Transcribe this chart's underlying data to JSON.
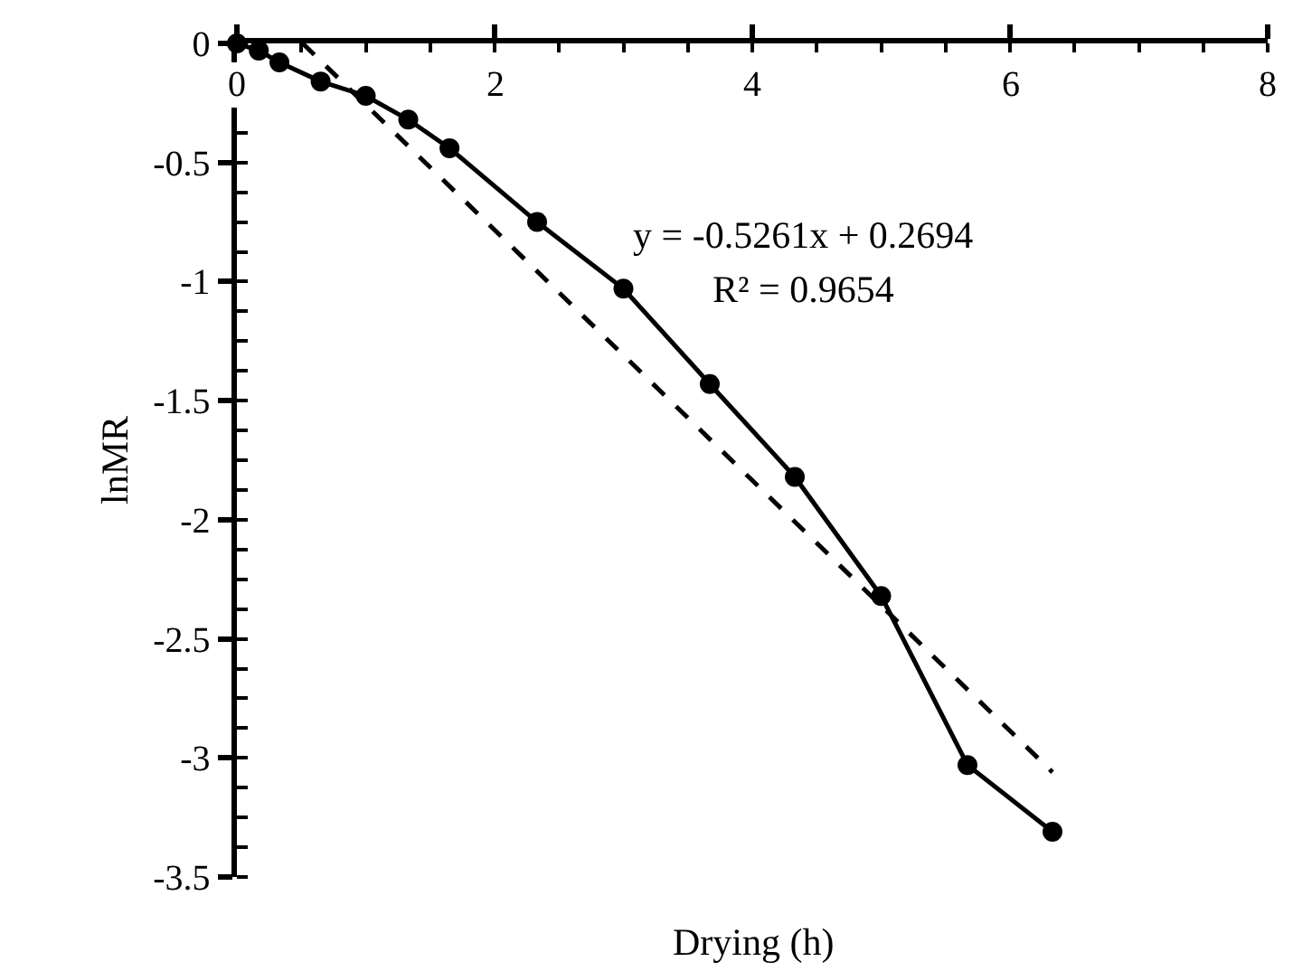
{
  "chart_data": {
    "type": "line",
    "xlabel": "Drying (h)",
    "ylabel": "lnMR",
    "xlim": [
      0,
      8
    ],
    "xticks": [
      0,
      2,
      4,
      6,
      8
    ],
    "ylim": [
      -3.5,
      0
    ],
    "yticks": [
      0,
      -0.5,
      -1,
      -1.5,
      -2,
      -2.5,
      -3,
      -3.5
    ],
    "series": [
      {
        "color": "#000000",
        "line_style": "solid",
        "marker": "circle",
        "x": [
          0,
          0.17,
          0.33,
          0.65,
          1.0,
          1.33,
          1.65,
          2.33,
          3.0,
          3.67,
          4.33,
          5.0,
          5.67,
          6.33
        ],
        "values": [
          0,
          -0.03,
          -0.08,
          -0.16,
          -0.22,
          -0.32,
          -0.44,
          -0.75,
          -1.03,
          -1.43,
          -1.82,
          -2.32,
          -3.03,
          -3.31
        ]
      },
      {
        "color": "#000000",
        "line_style": "dashed",
        "marker": "none",
        "x": [
          0.51,
          6.33
        ],
        "values": [
          0,
          -3.06
        ]
      }
    ],
    "annotations": [
      "y = -0.5261x + 0.2694",
      "R² = 0.9654"
    ]
  }
}
